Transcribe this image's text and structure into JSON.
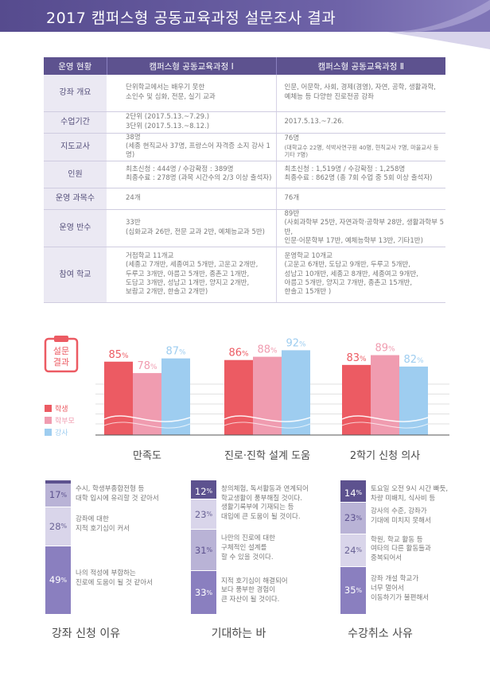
{
  "header": {
    "title": "2017 캠퍼스형 공동교육과정 설문조사 결과"
  },
  "table": {
    "headers": [
      "운영 현황",
      "캠퍼스형 공동교육과정 Ⅰ",
      "캠퍼스형 공동교육과정 Ⅱ"
    ],
    "rows": [
      {
        "label": "강좌 개요",
        "c1": [
          "단위학교에서는 배우기 못한",
          "소인수 및 심화, 전문, 실기 교과"
        ],
        "c2": [
          "인문, 어문학, 사회, 경제(경영), 자연, 공학, 생활과학,",
          "예체능 등 다양한 진로전공 강좌"
        ]
      },
      {
        "label": "수업기간",
        "c1": [
          "2단위 (2017.5.13.~7.29.)",
          "3단위 (2017.5.13.~8.12.)"
        ],
        "c2": [
          "2017.5.13.~7.26."
        ]
      },
      {
        "label": "지도교사",
        "c1": [
          "38명",
          "(세종 현직교사 37명, 프랑스어 자격증 소지 강사 1명)"
        ],
        "c2": [
          "76명",
          "(대학교수 22명, 석박사연구원 40명, 현직교사 7명, 마을교사 등 기타 7명)"
        ]
      },
      {
        "label": "인원",
        "c1": [
          "최초신청 : 444명 / 수강확정 : 389명",
          "최종수료 : 278명 (과목 시간수의 2/3 이상 출석자)"
        ],
        "c2": [
          "최초신청 : 1,519명 / 수강확정 : 1,258명",
          "최종수료 : 862명 (총 7회 수업 중 5회 이상 출석자)"
        ]
      },
      {
        "label": "운영 과목수",
        "c1": [
          "24개"
        ],
        "c2": [
          "76개"
        ]
      },
      {
        "label": "운영 반수",
        "c1": [
          "33반",
          "(심화교과 26반, 전문 교과 2반, 예체능교과 5반)"
        ],
        "c2": [
          "89반",
          "(사회과학부 25반, 자연과학·공학부 28반, 생활과학부 5반,",
          "인문·어문학부 17반, 예체능학부 13반, 기타1반)"
        ]
      },
      {
        "label": "참여 학교",
        "c1": [
          "거점학교 11개교",
          "(세종고 7개반, 세종여고 5개반, 고운고 2개반,",
          "두루고 3개반, 아름고 5개반, 종촌고 1개반,",
          "도담고 3개반, 성남고 1개반, 양지고 2개반,",
          "보람고 2개반, 한솔고 2개반)"
        ],
        "c2": [
          "운영학교 10개교",
          "(고운고 6개반, 도담고 9개반, 두루고 5개반,",
          "성남고 10개반, 세종고 8개반, 세종여고 9개반,",
          "아름고 5개반, 양지고 7개반, 종촌고 15개반,",
          "한솔고 15개반 )"
        ]
      }
    ]
  },
  "badge": {
    "line1": "설문",
    "line2": "결과"
  },
  "chart_data": {
    "type": "bar",
    "categories": [
      "만족도",
      "진로·진학 설계 도움",
      "2학기 신청 의사"
    ],
    "series": [
      {
        "name": "학생",
        "color": "#ec5b63",
        "values": [
          85,
          86,
          83
        ]
      },
      {
        "name": "학부모",
        "color": "#f09cb0",
        "values": [
          78,
          88,
          89
        ]
      },
      {
        "name": "강사",
        "color": "#9ecdf0",
        "values": [
          87,
          92,
          82
        ]
      }
    ],
    "unit": "%",
    "ylim": [
      0,
      100
    ],
    "legend": "left"
  },
  "stacks": [
    {
      "title": "강좌 신청 이유",
      "segments": [
        {
          "value": "17",
          "unit": "%",
          "color": "#b9b3d6",
          "text": [
            "수시, 학생부종합전형 등",
            "대학 입시에 유리할 것 같아서"
          ]
        },
        {
          "value": "28",
          "unit": "%",
          "color": "#d9d5ea",
          "text": [
            "강좌에 대한",
            "지적 호기심이 커서"
          ]
        },
        {
          "value": "49",
          "unit": "%",
          "color": "#8a7fbf",
          "text": [
            "나의 적성에 부합하는",
            "진로에 도움이 될 것 같아서"
          ]
        }
      ]
    },
    {
      "title": "기대하는 바",
      "segments": [
        {
          "value": "12",
          "unit": "%",
          "color": "#5d528f",
          "text": [
            "창의체험, 독서활동과 연계되어",
            "학교생활이 풍부해질 것이다."
          ]
        },
        {
          "value": "23",
          "unit": "%",
          "color": "#d9d5ea",
          "text": [
            "생활기록부에 기재되는 등",
            "대입에 큰 도움이 될 것이다."
          ]
        },
        {
          "value": "31",
          "unit": "%",
          "color": "#b9b3d6",
          "text": [
            "나만의 진로에 대한",
            "구체적인 설계를",
            "할 수 있을 것이다."
          ]
        },
        {
          "value": "33",
          "unit": "%",
          "color": "#8a7fbf",
          "text": [
            "지적 호기심이 해결되어",
            "보다 풍부한 경험이",
            "큰 자산이 될 것이다."
          ]
        }
      ]
    },
    {
      "title": "수강취소 사유",
      "segments": [
        {
          "value": "14",
          "unit": "%",
          "color": "#5d528f",
          "text": [
            "토요일 오전 9시 시간 빠듯,",
            "차량 미배치, 식사비 등"
          ]
        },
        {
          "value": "23",
          "unit": "%",
          "color": "#b9b3d6",
          "text": [
            "강사의 수준, 강좌가",
            "기대에 미치지 못해서"
          ]
        },
        {
          "value": "24",
          "unit": "%",
          "color": "#d9d5ea",
          "text": [
            "학원, 학교 활동 등",
            "여타의 다른 활동들과",
            "중복되어서"
          ]
        },
        {
          "value": "35",
          "unit": "%",
          "color": "#8a7fbf",
          "text": [
            "강좌 개설 학교가",
            "너무 멀어서",
            "이동하기가 불편해서"
          ]
        }
      ]
    }
  ]
}
